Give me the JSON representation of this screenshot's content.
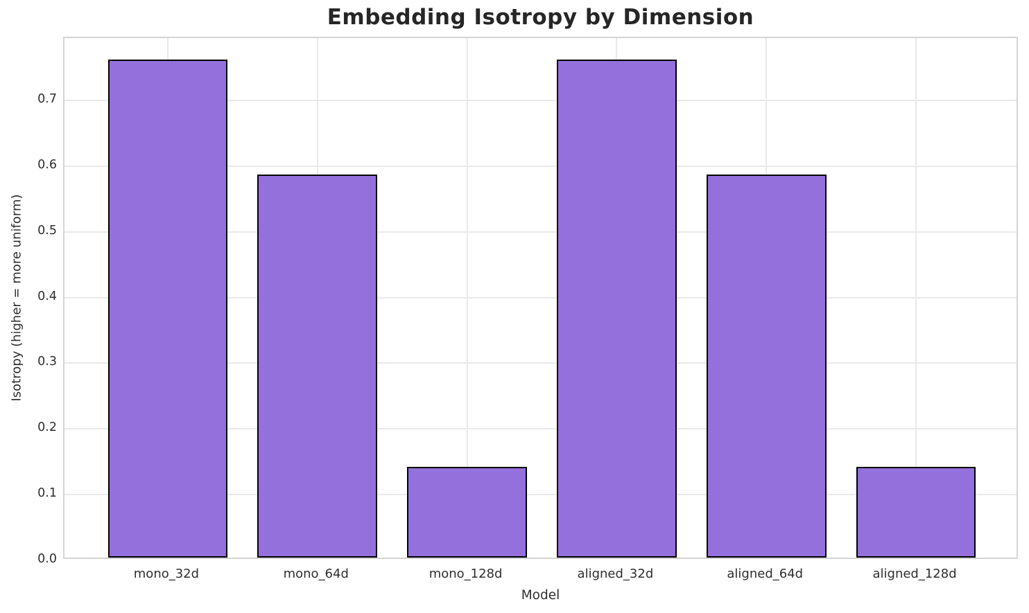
{
  "chart_data": {
    "type": "bar",
    "title": "Embedding Isotropy by Dimension",
    "xlabel": "Model",
    "ylabel": "Isotropy (higher = more uniform)",
    "categories": [
      "mono_32d",
      "mono_64d",
      "mono_128d",
      "aligned_32d",
      "aligned_64d",
      "aligned_128d"
    ],
    "values": [
      0.758,
      0.583,
      0.138,
      0.758,
      0.583,
      0.138
    ],
    "ylim": [
      0,
      0.795
    ],
    "xlim": [
      -0.69,
      5.69
    ],
    "yticks": [
      0.0,
      0.1,
      0.2,
      0.3,
      0.4,
      0.5,
      0.6,
      0.7
    ],
    "ytick_labels": [
      "0.0",
      "0.1",
      "0.2",
      "0.3",
      "0.4",
      "0.5",
      "0.6",
      "0.7"
    ],
    "bar_width": 0.8,
    "grid": true,
    "legend": false,
    "colors": {
      "bar_fill": "#9370DB",
      "bar_edge": "#000000",
      "grid_line": "#e9e9e9",
      "spine": "#d4d4d4",
      "text": "#262626",
      "background": "#ffffff"
    }
  }
}
